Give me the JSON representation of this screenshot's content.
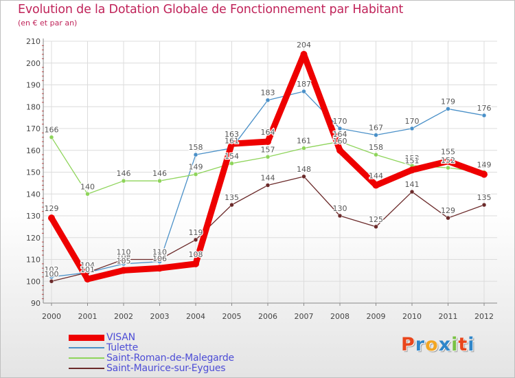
{
  "chart_data": {
    "type": "line",
    "title": "Evolution de la Dotation Globale de Fonctionnement par Habitant",
    "subtitle": "(en € et par an)",
    "xlabel": "",
    "ylabel": "",
    "x": [
      "2000",
      "2001",
      "2002",
      "2003",
      "2004",
      "2005",
      "2006",
      "2007",
      "2008",
      "2009",
      "2010",
      "2011",
      "2012"
    ],
    "ylim": [
      90,
      210
    ],
    "yticks": [
      90,
      100,
      110,
      120,
      130,
      140,
      150,
      160,
      170,
      180,
      190,
      200,
      210
    ],
    "grid": true,
    "legend": "bottom-left",
    "series": [
      {
        "name": "VISAN",
        "color": "#ee0000",
        "emphasis": true,
        "values": [
          129,
          101,
          105,
          106,
          108,
          163,
          164,
          204,
          160,
          144,
          151,
          155,
          149
        ]
      },
      {
        "name": "Tulette",
        "color": "#4a90c8",
        "values": [
          102,
          104,
          108,
          109,
          158,
          161,
          183,
          187,
          170,
          167,
          170,
          179,
          176
        ]
      },
      {
        "name": "Saint-Roman-de-Malegarde",
        "color": "#8ed45a",
        "values": [
          166,
          140,
          146,
          146,
          149,
          154,
          157,
          161,
          164,
          158,
          153,
          152,
          150
        ]
      },
      {
        "name": "Saint-Maurice-sur-Eygues",
        "color": "#6b2a2a",
        "values": [
          100,
          104,
          110,
          110,
          119,
          135,
          144,
          148,
          130,
          125,
          141,
          129,
          135
        ]
      }
    ]
  },
  "logo": {
    "text": "Proxiti",
    "colors": [
      "#e9461c",
      "#2f86c9",
      "#f2a623",
      "#2f86c9",
      "#79c143",
      "#e9461c",
      "#2f86c9"
    ]
  }
}
